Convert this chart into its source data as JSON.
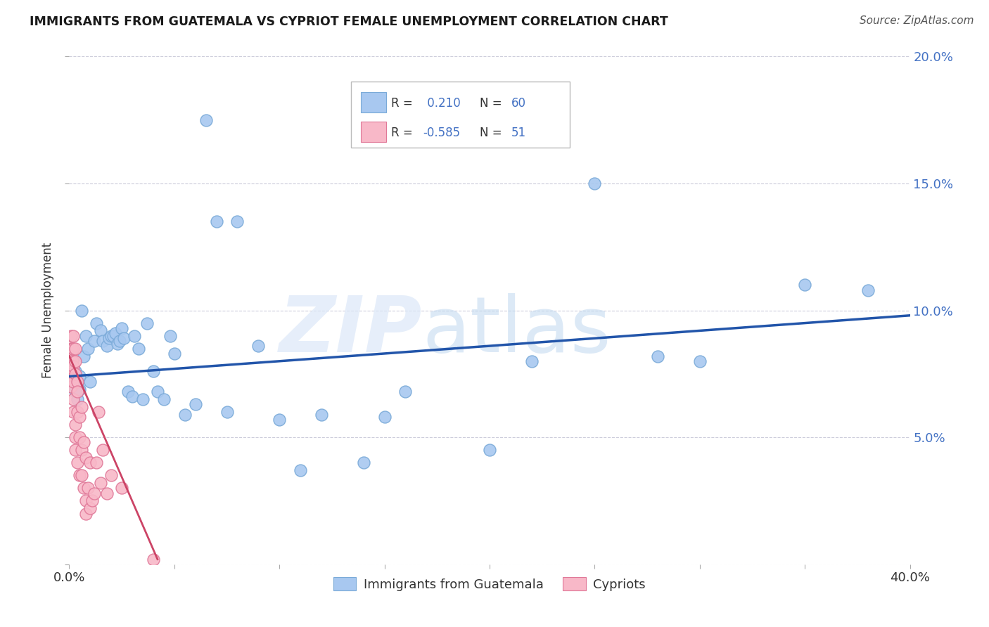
{
  "title": "IMMIGRANTS FROM GUATEMALA VS CYPRIOT FEMALE UNEMPLOYMENT CORRELATION CHART",
  "source": "Source: ZipAtlas.com",
  "ylabel": "Female Unemployment",
  "xlim": [
    0,
    0.4
  ],
  "ylim": [
    0,
    0.2
  ],
  "xticks": [
    0.0,
    0.05,
    0.1,
    0.15,
    0.2,
    0.25,
    0.3,
    0.35,
    0.4
  ],
  "yticks": [
    0.0,
    0.05,
    0.1,
    0.15,
    0.2
  ],
  "blue_color": "#a8c8f0",
  "blue_edge_color": "#7aaad8",
  "pink_color": "#f8b8c8",
  "pink_edge_color": "#e07898",
  "blue_line_color": "#2255aa",
  "pink_line_color": "#cc4466",
  "tick_label_color": "#4472c4",
  "legend_text_color": "#222222",
  "legend_num_color": "#4472c4",
  "blue_dots_x": [
    0.001,
    0.001,
    0.002,
    0.002,
    0.003,
    0.003,
    0.003,
    0.004,
    0.004,
    0.005,
    0.005,
    0.006,
    0.007,
    0.008,
    0.009,
    0.01,
    0.012,
    0.013,
    0.015,
    0.016,
    0.018,
    0.019,
    0.02,
    0.021,
    0.022,
    0.023,
    0.024,
    0.025,
    0.026,
    0.028,
    0.03,
    0.031,
    0.033,
    0.035,
    0.037,
    0.04,
    0.042,
    0.045,
    0.048,
    0.05,
    0.055,
    0.06,
    0.065,
    0.07,
    0.075,
    0.08,
    0.09,
    0.1,
    0.11,
    0.12,
    0.14,
    0.15,
    0.16,
    0.2,
    0.22,
    0.25,
    0.28,
    0.3,
    0.35,
    0.38
  ],
  "blue_dots_y": [
    0.075,
    0.08,
    0.07,
    0.078,
    0.068,
    0.073,
    0.076,
    0.065,
    0.071,
    0.069,
    0.074,
    0.1,
    0.082,
    0.09,
    0.085,
    0.072,
    0.088,
    0.095,
    0.092,
    0.088,
    0.086,
    0.089,
    0.09,
    0.09,
    0.091,
    0.087,
    0.088,
    0.093,
    0.089,
    0.068,
    0.066,
    0.09,
    0.085,
    0.065,
    0.095,
    0.076,
    0.068,
    0.065,
    0.09,
    0.083,
    0.059,
    0.063,
    0.175,
    0.135,
    0.06,
    0.135,
    0.086,
    0.057,
    0.037,
    0.059,
    0.04,
    0.058,
    0.068,
    0.045,
    0.08,
    0.15,
    0.082,
    0.08,
    0.11,
    0.108
  ],
  "pink_dots_x": [
    0.0005,
    0.0005,
    0.001,
    0.001,
    0.001,
    0.001,
    0.001,
    0.001,
    0.001,
    0.0015,
    0.0015,
    0.002,
    0.002,
    0.002,
    0.002,
    0.002,
    0.002,
    0.003,
    0.003,
    0.003,
    0.003,
    0.003,
    0.003,
    0.004,
    0.004,
    0.004,
    0.004,
    0.005,
    0.005,
    0.005,
    0.006,
    0.006,
    0.006,
    0.007,
    0.007,
    0.008,
    0.008,
    0.008,
    0.009,
    0.01,
    0.01,
    0.011,
    0.012,
    0.013,
    0.014,
    0.015,
    0.016,
    0.018,
    0.02,
    0.025,
    0.04
  ],
  "pink_dots_y": [
    0.08,
    0.075,
    0.09,
    0.085,
    0.082,
    0.078,
    0.075,
    0.073,
    0.07,
    0.085,
    0.08,
    0.09,
    0.085,
    0.078,
    0.072,
    0.065,
    0.06,
    0.085,
    0.08,
    0.075,
    0.055,
    0.05,
    0.045,
    0.072,
    0.068,
    0.06,
    0.04,
    0.058,
    0.05,
    0.035,
    0.062,
    0.045,
    0.035,
    0.048,
    0.03,
    0.042,
    0.025,
    0.02,
    0.03,
    0.04,
    0.022,
    0.025,
    0.028,
    0.04,
    0.06,
    0.032,
    0.045,
    0.028,
    0.035,
    0.03,
    0.002
  ],
  "blue_line_x": [
    0.0,
    0.4
  ],
  "blue_line_y": [
    0.074,
    0.098
  ],
  "pink_line_x": [
    0.0,
    0.042
  ],
  "pink_line_y": [
    0.082,
    0.002
  ]
}
